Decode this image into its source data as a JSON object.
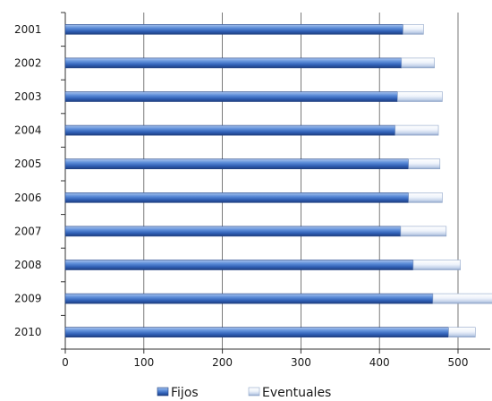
{
  "chart_data": {
    "type": "bar",
    "orientation": "horizontal",
    "stacked": true,
    "categories": [
      "2001",
      "2002",
      "2003",
      "2004",
      "2005",
      "2006",
      "2007",
      "2008",
      "2009",
      "2010"
    ],
    "series": [
      {
        "name": "Fijos",
        "values": [
          430,
          428,
          423,
          420,
          437,
          437,
          427,
          443,
          468,
          488
        ],
        "color": "#3a6cc4"
      },
      {
        "name": "Eventuales",
        "values": [
          26,
          42,
          57,
          55,
          40,
          43,
          58,
          60,
          77,
          34
        ],
        "color": "#dde6f4"
      }
    ],
    "x_ticks": [
      "0",
      "100",
      "200",
      "300",
      "400",
      "500"
    ],
    "xlim": [
      0,
      535
    ],
    "grid": true,
    "legend_position": "bottom"
  }
}
